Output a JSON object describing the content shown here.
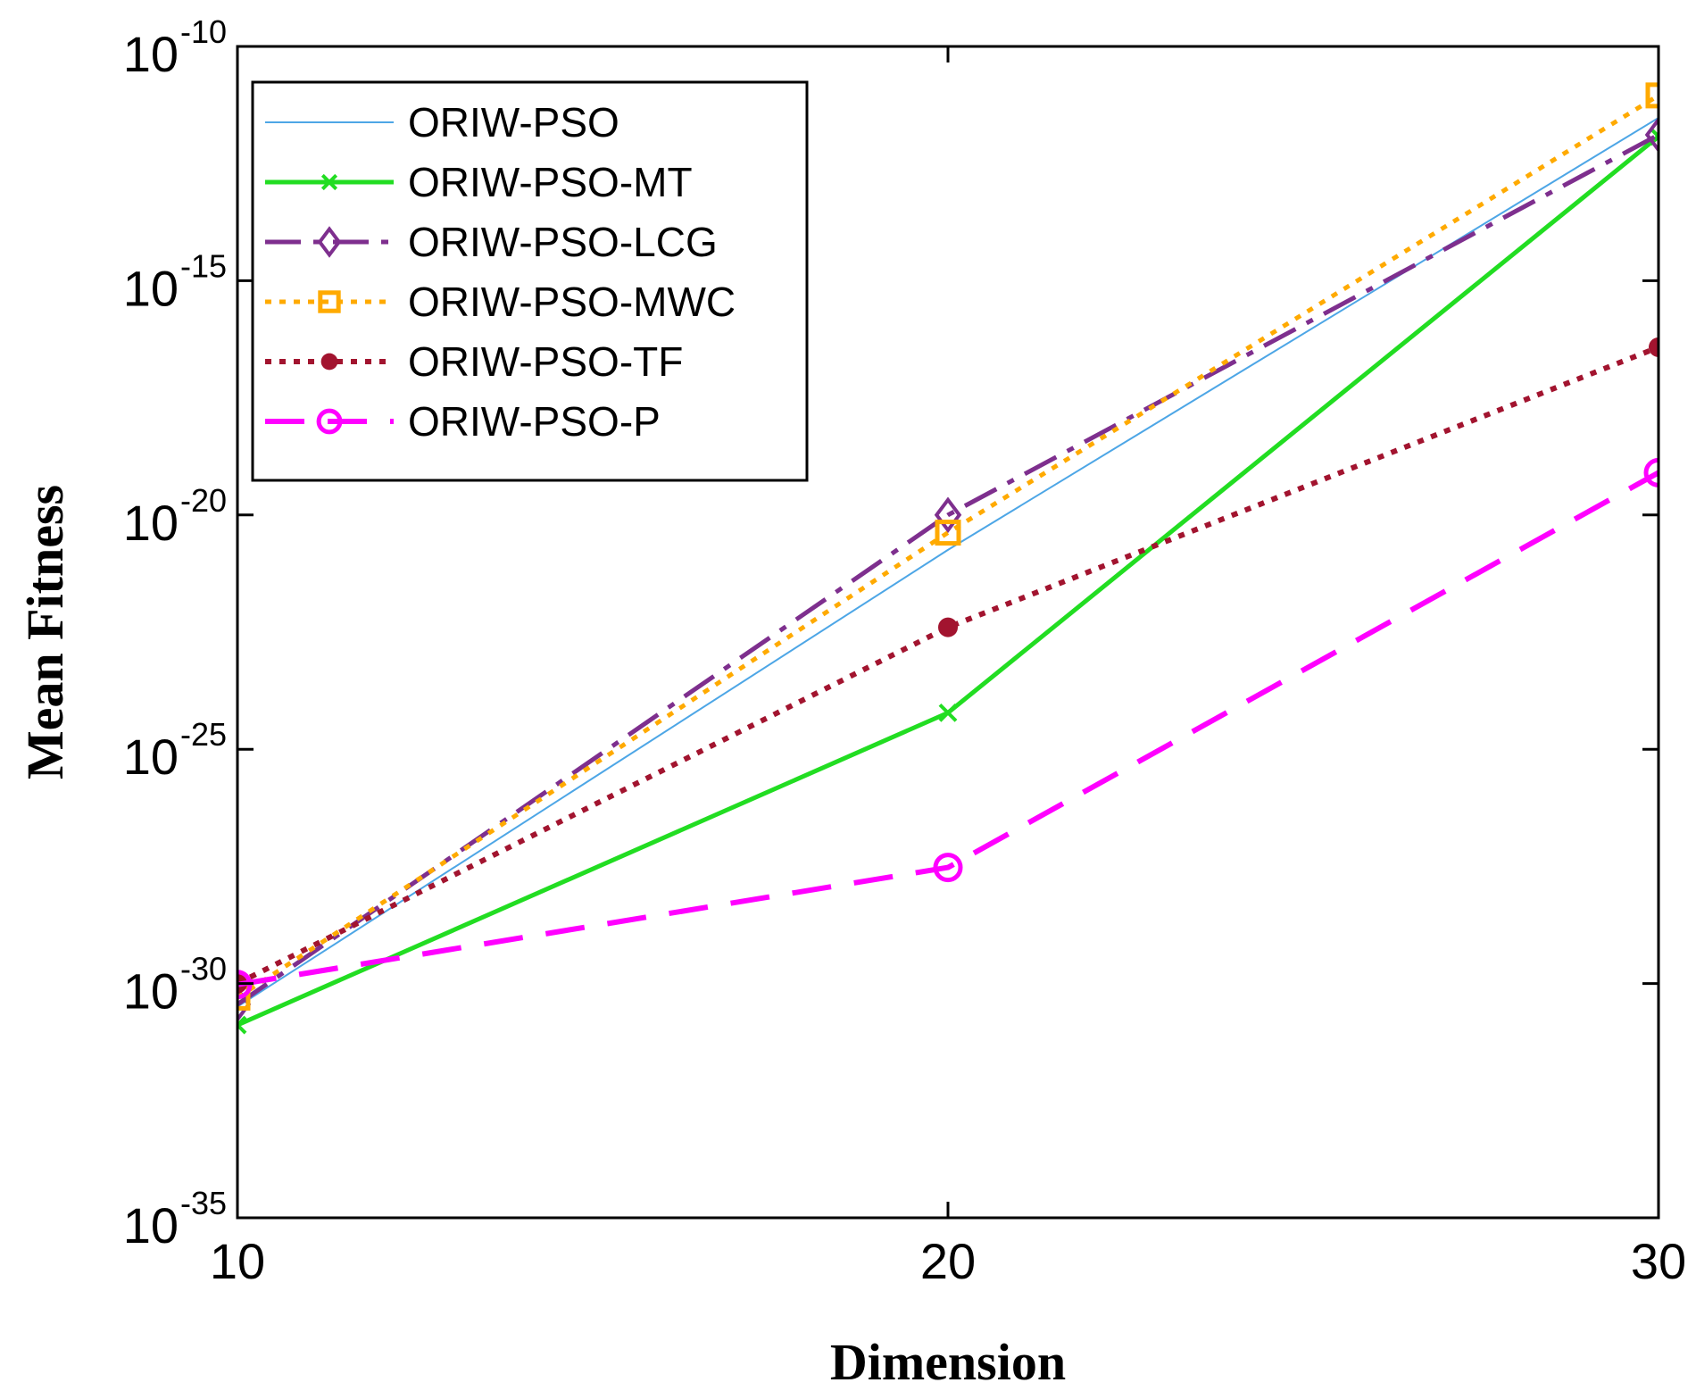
{
  "chart_data": {
    "type": "line",
    "title": "",
    "xlabel": "Dimension",
    "ylabel": "Mean Fitness",
    "x": [
      10,
      20,
      30
    ],
    "x_ticks": [
      "10",
      "20",
      "30"
    ],
    "xlim": [
      10,
      30
    ],
    "y_scale": "log",
    "ylim": [
      1e-35,
      1e-10
    ],
    "y_tick_base": "10",
    "y_tick_exponents": [
      "-35",
      "-30",
      "-25",
      "-20",
      "-15",
      "-10"
    ],
    "grid": false,
    "legend_position": "top-left",
    "series": [
      {
        "name": "ORIW-PSO",
        "values": [
          3.2e-31,
          1.8e-21,
          3e-12
        ],
        "color": "#4da6e6",
        "style": "solid",
        "marker": "none"
      },
      {
        "name": "ORIW-PSO-MT",
        "values": [
          1.3e-31,
          6e-25,
          1.2e-12
        ],
        "color": "#22dd22",
        "style": "solid",
        "marker": "x"
      },
      {
        "name": "ORIW-PSO-LCG",
        "values": [
          3.6e-31,
          1e-20,
          1.3e-12
        ],
        "color": "#7e2f8e",
        "style": "dashdot",
        "marker": "diamond"
      },
      {
        "name": "ORIW-PSO-MWC",
        "values": [
          5e-31,
          4.2e-21,
          9e-12
        ],
        "color": "#ffaa00",
        "style": "dotted",
        "marker": "square"
      },
      {
        "name": "ORIW-PSO-TF",
        "values": [
          1e-30,
          4e-23,
          3.8e-17
        ],
        "color": "#a2142f",
        "style": "dotted",
        "marker": "dot"
      },
      {
        "name": "ORIW-PSO-P",
        "values": [
          9.5e-31,
          3e-28,
          8e-20
        ],
        "color": "#ff00ff",
        "style": "dashed",
        "marker": "circle"
      }
    ]
  }
}
